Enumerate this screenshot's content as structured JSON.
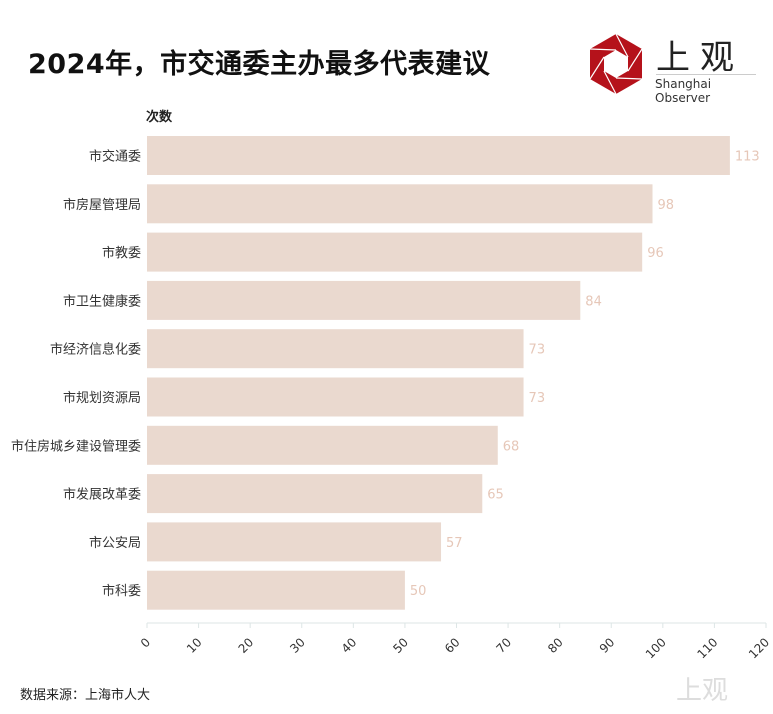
{
  "header": {
    "title": "2024年，市交通委主办最多代表建议"
  },
  "logo": {
    "cn": "上观",
    "en": "Shanghai Observer"
  },
  "footer": {
    "source": "数据来源：上海市人大",
    "watermark": "上观"
  },
  "colors": {
    "bar": "#ead9cf",
    "value_label": "#e6c7b8",
    "logo_red": "#b5121b"
  },
  "chart_data": {
    "type": "bar",
    "orientation": "horizontal",
    "title": "2024年，市交通委主办最多代表建议",
    "ylabel": "次数",
    "xlabel": "",
    "categories": [
      "市交通委",
      "市房屋管理局",
      "市教委",
      "市卫生健康委",
      "市经济信息化委",
      "市规划资源局",
      "市住房城乡建设管理委",
      "市发展改革委",
      "市公安局",
      "市科委"
    ],
    "values": [
      113,
      98,
      96,
      84,
      73,
      73,
      68,
      65,
      57,
      50
    ],
    "xlim": [
      0,
      120
    ],
    "xticks": [
      0,
      10,
      20,
      30,
      40,
      50,
      60,
      70,
      80,
      90,
      100,
      110,
      120
    ],
    "grid": false
  }
}
